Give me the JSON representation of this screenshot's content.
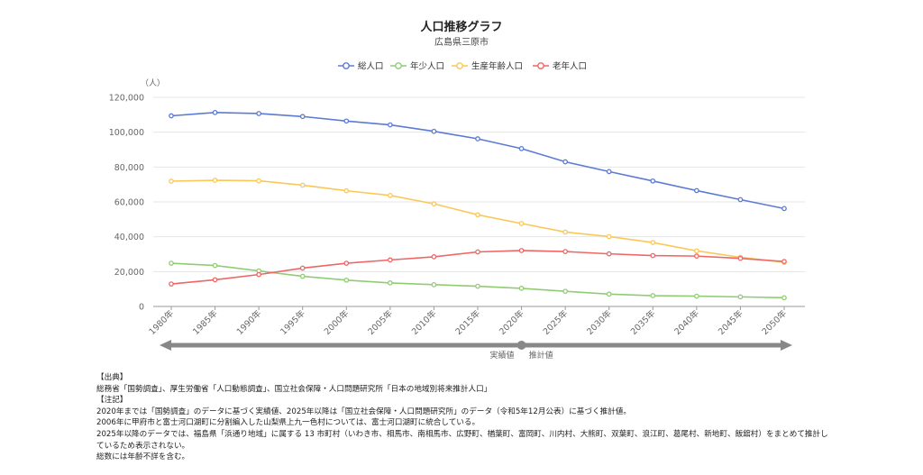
{
  "chart_data": {
    "type": "line",
    "title": "人口推移グラフ",
    "subtitle": "広島県三原市",
    "ylabel": "（人）",
    "ylim": [
      0,
      120000
    ],
    "yticks": [
      "0",
      "20,000",
      "40,000",
      "60,000",
      "80,000",
      "100,000",
      "120,000"
    ],
    "ytick_values": [
      0,
      20000,
      40000,
      60000,
      80000,
      100000,
      120000
    ],
    "categories": [
      "1980年",
      "1985年",
      "1990年",
      "1995年",
      "2000年",
      "2005年",
      "2010年",
      "2015年",
      "2020年",
      "2025年",
      "2030年",
      "2035年",
      "2040年",
      "2045年",
      "2050年"
    ],
    "legend_position": "top-center",
    "grid": true,
    "series": [
      {
        "name": "総人口",
        "color": "#5b7bd5",
        "values": [
          109400,
          111300,
          110700,
          109000,
          106400,
          104200,
          100500,
          96200,
          90600,
          83000,
          77400,
          72000,
          66500,
          61300,
          56200
        ]
      },
      {
        "name": "年少人口",
        "color": "#91cc75",
        "values": [
          24800,
          23500,
          20400,
          17300,
          15100,
          13500,
          12500,
          11600,
          10400,
          8700,
          7100,
          6200,
          5900,
          5500,
          5000
        ]
      },
      {
        "name": "生産年齢人口",
        "color": "#fac858",
        "values": [
          71900,
          72400,
          72100,
          69600,
          66400,
          63700,
          58900,
          52600,
          47600,
          42700,
          40100,
          36700,
          31900,
          28200,
          25300
        ]
      },
      {
        "name": "老年人口",
        "color": "#ee6666",
        "values": [
          12900,
          15300,
          18300,
          22000,
          24800,
          26700,
          28500,
          31300,
          32100,
          31500,
          30200,
          29200,
          28900,
          27600,
          25800
        ]
      }
    ],
    "range_labels": {
      "actual": "実績値",
      "projected": "推計値"
    }
  },
  "notes": {
    "source_header": "【出典】",
    "source_text": "総務省「国勢調査」、厚生労働省「人口動態調査」、国立社会保障・人口問題研究所「日本の地域別将来推計人口」",
    "notes_header": "【注記】",
    "note1": "2020年までは「国勢調査」のデータに基づく実績値、2025年以降は「国立社会保障・人口問題研究所」のデータ（令和5年12月公表）に基づく推計値。",
    "note2": "2006年に甲府市と富士河口湖町に分割編入した山梨県上九一色村については、富士河口湖町に統合している。",
    "note3": "2025年以降のデータでは、福島県「浜通り地域」に属する 13 市町村（いわき市、相馬市、南相馬市、広野町、楢葉町、富岡町、川内村、大熊町、双葉町、浪江町、葛尾村、新地町、飯舘村）をまとめて推計しているため表示されない。",
    "note4": "総数には年齢不詳を含む。"
  }
}
